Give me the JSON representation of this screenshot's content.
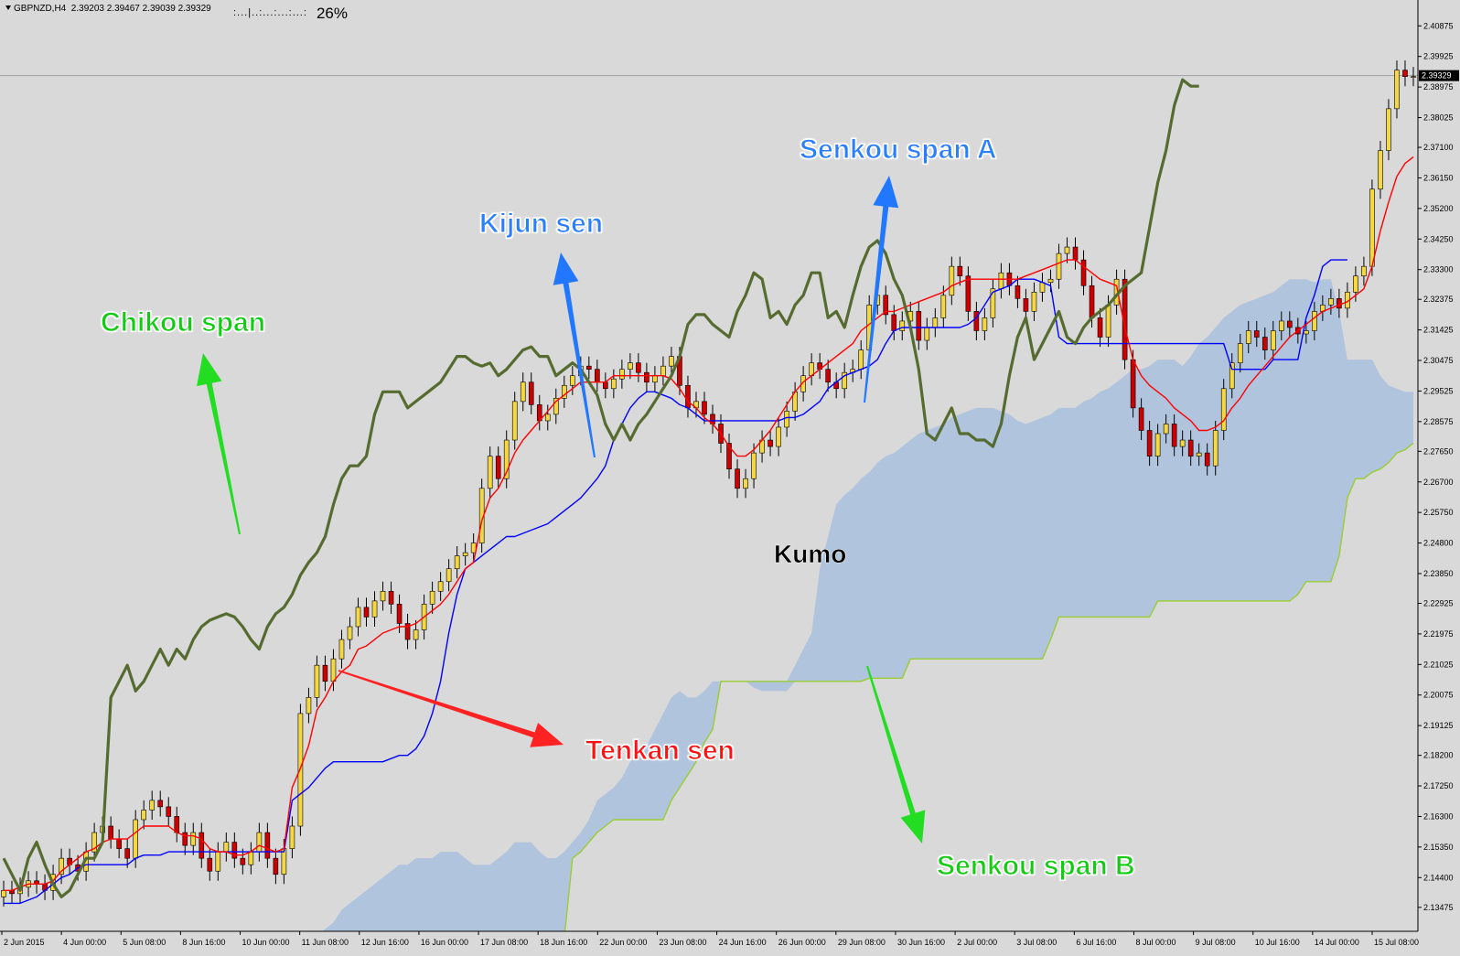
{
  "header": {
    "symbol": "GBPNZD,H4",
    "ohlc": "2.39203 2.39467 2.39039 2.39329",
    "indicator_dots": ":...|..:...:...:...:",
    "indicator_value": "26%"
  },
  "annotations": {
    "chikou": "Chikou span",
    "kijun": "Kijun sen",
    "senkou_a": "Senkou span A",
    "tenkan": "Tenkan sen",
    "kumo": "Kumo",
    "senkou_b": "Senkou span B"
  },
  "colors": {
    "background": "#d9d9d9",
    "tenkan": "#ff0000",
    "kijun": "#0000ff",
    "chikou": "#556b2f",
    "senkou_b": "#9acd32",
    "kumo": "#b0c4de",
    "bull_candle": "#f5d742",
    "bear_candle": "#cc0000",
    "arrow_green": "#22dd22",
    "arrow_blue": "#2277ff",
    "arrow_red": "#ff2222"
  },
  "chart_data": {
    "type": "candlestick",
    "symbol": "GBPNZD",
    "timeframe": "H4",
    "ylim": [
      2.1273,
      2.4168
    ],
    "y_ticks": [
      "2.40875",
      "2.39925",
      "2.38975",
      "2.38025",
      "2.37100",
      "2.36150",
      "2.35200",
      "2.34250",
      "2.33300",
      "2.32375",
      "2.31425",
      "2.30475",
      "2.29525",
      "2.28575",
      "2.27650",
      "2.26700",
      "2.25750",
      "2.24800",
      "2.23850",
      "2.22925",
      "2.21975",
      "2.21025",
      "2.20075",
      "2.19125",
      "2.18200",
      "2.17250",
      "2.16300",
      "2.15350",
      "2.14400",
      "2.13475"
    ],
    "current_price": "2.39329",
    "x_ticks": [
      "2 Jun 2015",
      "4 Jun 00:00",
      "5 Jun 08:00",
      "8 Jun 16:00",
      "10 Jun 00:00",
      "11 Jun 08:00",
      "12 Jun 16:00",
      "16 Jun 00:00",
      "17 Jun 08:00",
      "18 Jun 16:00",
      "22 Jun 00:00",
      "23 Jun 08:00",
      "24 Jun 16:00",
      "26 Jun 00:00",
      "29 Jun 08:00",
      "30 Jun 16:00",
      "2 Jul 00:00",
      "3 Jul 08:00",
      "6 Jul 16:00",
      "8 Jul 00:00",
      "9 Jul 08:00",
      "10 Jul 16:00",
      "14 Jul 00:00",
      "15 Jul 08:00"
    ],
    "close": [
      2.14,
      2.139,
      2.141,
      2.143,
      2.142,
      2.14,
      2.145,
      2.15,
      2.148,
      2.146,
      2.152,
      2.158,
      2.16,
      2.156,
      2.153,
      2.15,
      2.162,
      2.165,
      2.168,
      2.166,
      2.163,
      2.158,
      2.154,
      2.158,
      2.15,
      2.146,
      2.152,
      2.155,
      2.15,
      2.148,
      2.152,
      2.158,
      2.15,
      2.145,
      2.153,
      2.16,
      2.195,
      2.2,
      2.21,
      2.205,
      2.212,
      2.218,
      2.222,
      2.228,
      2.225,
      2.23,
      2.233,
      2.229,
      2.223,
      2.218,
      2.221,
      2.229,
      2.233,
      2.236,
      2.24,
      2.244,
      2.245,
      2.248,
      2.265,
      2.275,
      2.268,
      2.28,
      2.292,
      2.298,
      2.291,
      2.286,
      2.288,
      2.293,
      2.297,
      2.3,
      2.303,
      2.302,
      2.298,
      2.296,
      2.299,
      2.302,
      2.304,
      2.301,
      2.298,
      2.3,
      2.303,
      2.306,
      2.297,
      2.29,
      2.292,
      2.288,
      2.285,
      2.279,
      2.271,
      2.265,
      2.268,
      2.276,
      2.28,
      2.278,
      2.284,
      2.289,
      2.295,
      2.3,
      2.304,
      2.302,
      2.298,
      2.296,
      2.301,
      2.302,
      2.308,
      2.322,
      2.325,
      2.319,
      2.314,
      2.317,
      2.32,
      2.311,
      2.315,
      2.318,
      2.325,
      2.334,
      2.331,
      2.32,
      2.314,
      2.318,
      2.327,
      2.332,
      2.328,
      2.324,
      2.32,
      2.326,
      2.329,
      2.33,
      2.338,
      2.34,
      2.336,
      2.328,
      2.318,
      2.312,
      2.322,
      2.33,
      2.305,
      2.29,
      2.283,
      2.275,
      2.282,
      2.285,
      2.278,
      2.28,
      2.275,
      2.276,
      2.272,
      2.283,
      2.296,
      2.304,
      2.31,
      2.314,
      2.312,
      2.308,
      2.314,
      2.317,
      2.315,
      2.313,
      2.314,
      2.32,
      2.322,
      2.324,
      2.321,
      2.326,
      2.331,
      2.334,
      2.358,
      2.37,
      2.383,
      2.395,
      2.393,
      2.393
    ],
    "tenkan": [
      2.14,
      2.14,
      2.141,
      2.142,
      2.142,
      2.142,
      2.143,
      2.146,
      2.148,
      2.15,
      2.152,
      2.153,
      2.155,
      2.156,
      2.156,
      2.156,
      2.158,
      2.16,
      2.16,
      2.16,
      2.16,
      2.158,
      2.157,
      2.157,
      2.156,
      2.153,
      2.152,
      2.152,
      2.151,
      2.151,
      2.152,
      2.154,
      2.153,
      2.152,
      2.153,
      2.172,
      2.178,
      2.185,
      2.196,
      2.2,
      2.205,
      2.208,
      2.21,
      2.215,
      2.216,
      2.218,
      2.22,
      2.221,
      2.222,
      2.222,
      2.223,
      2.225,
      2.227,
      2.229,
      2.232,
      2.236,
      2.24,
      2.242,
      2.255,
      2.262,
      2.265,
      2.27,
      2.276,
      2.28,
      2.283,
      2.286,
      2.289,
      2.292,
      2.294,
      2.296,
      2.298,
      2.298,
      2.298,
      2.298,
      2.3,
      2.3,
      2.3,
      2.3,
      2.3,
      2.3,
      2.3,
      2.299,
      2.296,
      2.292,
      2.29,
      2.287,
      2.285,
      2.282,
      2.278,
      2.275,
      2.275,
      2.277,
      2.28,
      2.283,
      2.287,
      2.291,
      2.295,
      2.298,
      2.3,
      2.302,
      2.304,
      2.306,
      2.308,
      2.31,
      2.314,
      2.316,
      2.318,
      2.32,
      2.32,
      2.321,
      2.322,
      2.323,
      2.324,
      2.325,
      2.326,
      2.328,
      2.329,
      2.33,
      2.33,
      2.33,
      2.33,
      2.33,
      2.33,
      2.33,
      2.331,
      2.332,
      2.333,
      2.334,
      2.335,
      2.336,
      2.336,
      2.334,
      2.332,
      2.33,
      2.329,
      2.328,
      2.315,
      2.305,
      2.3,
      2.297,
      2.295,
      2.293,
      2.29,
      2.288,
      2.286,
      2.283,
      2.283,
      2.284,
      2.286,
      2.29,
      2.293,
      2.297,
      2.3,
      2.303,
      2.306,
      2.309,
      2.312,
      2.314,
      2.316,
      2.318,
      2.32,
      2.321,
      2.322,
      2.323,
      2.325,
      2.327,
      2.334,
      2.345,
      2.354,
      2.362,
      2.366,
      2.368
    ],
    "kijun": [
      2.136,
      2.136,
      2.136,
      2.137,
      2.138,
      2.14,
      2.142,
      2.144,
      2.145,
      2.147,
      2.148,
      2.148,
      2.148,
      2.148,
      2.148,
      2.148,
      2.15,
      2.151,
      2.151,
      2.151,
      2.152,
      2.152,
      2.152,
      2.152,
      2.152,
      2.152,
      2.152,
      2.152,
      2.152,
      2.152,
      2.152,
      2.152,
      2.152,
      2.152,
      2.152,
      2.168,
      2.17,
      2.172,
      2.175,
      2.178,
      2.18,
      2.18,
      2.18,
      2.18,
      2.18,
      2.18,
      2.18,
      2.181,
      2.182,
      2.182,
      2.184,
      2.188,
      2.195,
      2.205,
      2.22,
      2.232,
      2.24,
      2.242,
      2.244,
      2.246,
      2.248,
      2.25,
      2.25,
      2.251,
      2.252,
      2.253,
      2.254,
      2.256,
      2.258,
      2.26,
      2.262,
      2.265,
      2.268,
      2.272,
      2.28,
      2.285,
      2.29,
      2.293,
      2.295,
      2.295,
      2.294,
      2.293,
      2.291,
      2.29,
      2.288,
      2.286,
      2.286,
      2.286,
      2.286,
      2.286,
      2.286,
      2.286,
      2.286,
      2.286,
      2.286,
      2.287,
      2.287,
      2.288,
      2.29,
      2.292,
      2.296,
      2.298,
      2.3,
      2.301,
      2.302,
      2.303,
      2.305,
      2.31,
      2.314,
      2.315,
      2.315,
      2.315,
      2.315,
      2.315,
      2.315,
      2.315,
      2.315,
      2.316,
      2.318,
      2.322,
      2.326,
      2.327,
      2.328,
      2.33,
      2.33,
      2.33,
      2.329,
      2.328,
      2.312,
      2.31,
      2.31,
      2.31,
      2.31,
      2.31,
      2.31,
      2.31,
      2.31,
      2.31,
      2.31,
      2.31,
      2.31,
      2.31,
      2.31,
      2.31,
      2.31,
      2.31,
      2.31,
      2.31,
      2.31,
      2.302,
      2.302,
      2.302,
      2.302,
      2.302,
      2.305,
      2.305,
      2.305,
      2.305,
      2.318,
      2.325,
      2.334,
      2.336,
      2.336,
      2.336
    ],
    "chikou": [
      2.15,
      2.145,
      2.14,
      2.15,
      2.155,
      2.148,
      2.142,
      2.138,
      2.14,
      2.145,
      2.15,
      2.15,
      2.155,
      2.2,
      2.205,
      2.21,
      2.202,
      2.205,
      2.21,
      2.215,
      2.21,
      2.215,
      2.212,
      2.218,
      2.222,
      2.224,
      2.225,
      2.226,
      2.225,
      2.222,
      2.218,
      2.215,
      2.222,
      2.226,
      2.228,
      2.232,
      2.238,
      2.242,
      2.245,
      2.25,
      2.26,
      2.268,
      2.272,
      2.272,
      2.275,
      2.288,
      2.295,
      2.295,
      2.295,
      2.29,
      2.292,
      2.294,
      2.296,
      2.298,
      2.302,
      2.306,
      2.306,
      2.304,
      2.303,
      2.304,
      2.3,
      2.302,
      2.305,
      2.308,
      2.309,
      2.306,
      2.306,
      2.3,
      2.302,
      2.304,
      2.302,
      2.298,
      2.294,
      2.285,
      2.28,
      2.285,
      2.28,
      2.285,
      2.288,
      2.292,
      2.296,
      2.3,
      2.306,
      2.316,
      2.319,
      2.319,
      2.316,
      2.314,
      2.312,
      2.32,
      2.325,
      2.332,
      2.33,
      2.318,
      2.32,
      2.316,
      2.322,
      2.325,
      2.332,
      2.332,
      2.318,
      2.32,
      2.315,
      2.325,
      2.334,
      2.34,
      2.342,
      2.338,
      2.33,
      2.325,
      2.315,
      2.302,
      2.282,
      2.28,
      2.285,
      2.29,
      2.282,
      2.282,
      2.28,
      2.28,
      2.278,
      2.285,
      2.3,
      2.312,
      2.318,
      2.305,
      2.31,
      2.315,
      2.32,
      2.312,
      2.31,
      2.315,
      2.318,
      2.32,
      2.322,
      2.325,
      2.328,
      2.33,
      2.332,
      2.346,
      2.36,
      2.37,
      2.384,
      2.392,
      2.39,
      2.39
    ],
    "senkou_a": [
      2.124,
      2.126,
      2.128,
      2.13,
      2.134,
      2.136,
      2.138,
      2.14,
      2.142,
      2.144,
      2.146,
      2.148,
      2.148,
      2.15,
      2.15,
      2.15,
      2.152,
      2.152,
      2.152,
      2.15,
      2.148,
      2.148,
      2.148,
      2.15,
      2.152,
      2.155,
      2.155,
      2.155,
      2.152,
      2.15,
      2.15,
      2.152,
      2.155,
      2.158,
      2.162,
      2.168,
      2.17,
      2.172,
      2.175,
      2.18,
      2.182,
      2.185,
      2.19,
      2.195,
      2.2,
      2.202,
      2.2,
      2.2,
      2.202,
      2.205,
      2.205,
      2.205,
      2.205,
      2.205,
      2.203,
      2.202,
      2.202,
      2.202,
      2.202,
      2.21,
      2.215,
      2.22,
      2.24,
      2.25,
      2.26,
      2.263,
      2.265,
      2.268,
      2.27,
      2.273,
      2.275,
      2.276,
      2.278,
      2.28,
      2.282,
      2.283,
      2.284,
      2.285,
      2.287,
      2.288,
      2.289,
      2.29,
      2.29,
      2.29,
      2.289,
      2.288,
      2.286,
      2.285,
      2.286,
      2.287,
      2.288,
      2.29,
      2.29,
      2.29,
      2.292,
      2.293,
      2.295,
      2.296,
      2.298,
      2.3,
      2.302,
      2.302,
      2.303,
      2.305,
      2.305,
      2.305,
      2.303,
      2.306,
      2.31,
      2.312,
      2.315,
      2.318,
      2.32,
      2.322,
      2.323,
      2.324,
      2.325,
      2.326,
      2.328,
      2.33,
      2.33,
      2.33,
      2.329,
      2.33,
      2.33,
      2.32,
      2.305,
      2.305,
      2.305,
      2.305,
      2.3,
      2.297,
      2.296,
      2.295,
      2.295
    ],
    "senkou_b": [
      2.125,
      2.125,
      2.125,
      2.125,
      2.125,
      2.125,
      2.125,
      2.125,
      2.125,
      2.125,
      2.125,
      2.125,
      2.125,
      2.125,
      2.125,
      2.125,
      2.125,
      2.125,
      2.125,
      2.125,
      2.125,
      2.125,
      2.125,
      2.125,
      2.125,
      2.125,
      2.125,
      2.125,
      2.125,
      2.125,
      2.125,
      2.125,
      2.125,
      2.125,
      2.125,
      2.125,
      2.125,
      2.125,
      2.125,
      2.125,
      2.15,
      2.152,
      2.155,
      2.158,
      2.16,
      2.162,
      2.162,
      2.162,
      2.162,
      2.162,
      2.162,
      2.162,
      2.168,
      2.172,
      2.176,
      2.18,
      2.186,
      2.19,
      2.205,
      2.205,
      2.205,
      2.205,
      2.205,
      2.205,
      2.205,
      2.205,
      2.205,
      2.205,
      2.205,
      2.205,
      2.205,
      2.205,
      2.205,
      2.205,
      2.205,
      2.205,
      2.206,
      2.206,
      2.206,
      2.206,
      2.206,
      2.212,
      2.212,
      2.212,
      2.212,
      2.212,
      2.212,
      2.212,
      2.212,
      2.212,
      2.212,
      2.212,
      2.212,
      2.212,
      2.212,
      2.212,
      2.212,
      2.212,
      2.218,
      2.225,
      2.225,
      2.225,
      2.225,
      2.225,
      2.225,
      2.225,
      2.225,
      2.225,
      2.225,
      2.225,
      2.225,
      2.23,
      2.23,
      2.23,
      2.23,
      2.23,
      2.23,
      2.23,
      2.23,
      2.23,
      2.23,
      2.23,
      2.23,
      2.23,
      2.23,
      2.23,
      2.23,
      2.23,
      2.232,
      2.236,
      2.236,
      2.236,
      2.236,
      2.244,
      2.262,
      2.268,
      2.268,
      2.27,
      2.271,
      2.273,
      2.276,
      2.277,
      2.279
    ]
  }
}
